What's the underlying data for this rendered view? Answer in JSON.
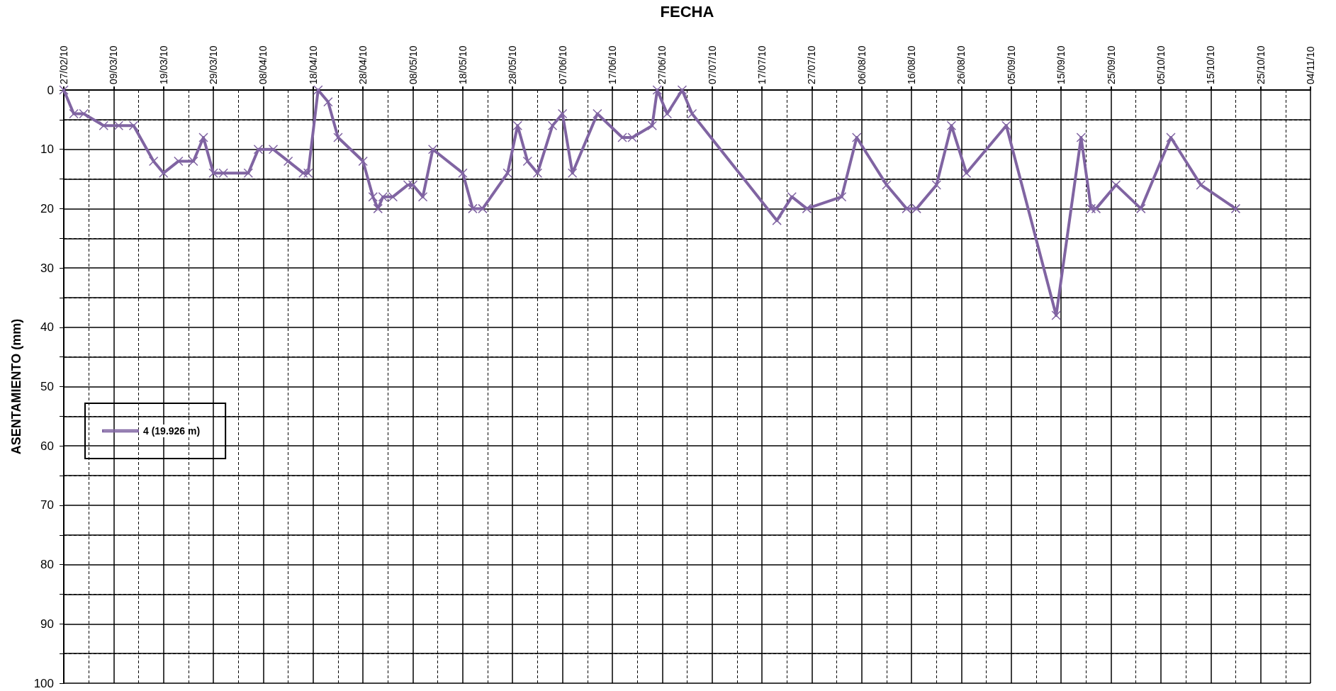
{
  "chart_data": {
    "type": "line",
    "xlabel": "FECHA",
    "ylabel": "ASENTAMIENTO (mm)",
    "x": [
      "--02-27",
      "--03-01",
      "--03-03",
      "--03-07",
      "--03-10",
      "--03-13",
      "--03-17",
      "--03-19",
      "--03-22",
      "--03-25",
      "--03-27",
      "--03-29",
      "--03-31",
      "--04-05",
      "--04-07",
      "--04-10",
      "--04-13",
      "--04-16",
      "--04-17",
      "--04-19",
      "--04-21",
      "--04-23",
      "--04-28",
      "--04-30",
      "--05-01",
      "--05-02",
      "--05-04",
      "--05-07",
      "--05-08",
      "--05-10",
      "--05-12",
      "--05-18",
      "--05-20",
      "--05-22",
      "--05-27",
      "--05-29",
      "--05-31",
      "--06-02",
      "--06-05",
      "--06-07",
      "--06-09",
      "--06-14",
      "--06-19",
      "--06-21",
      "--06-25",
      "--06-26",
      "--06-28",
      "--07-01",
      "--07-03",
      "--07-20",
      "--07-23",
      "--07-26",
      "--08-02",
      "--08-05",
      "--08-11",
      "--08-15",
      "--08-17",
      "--08-21",
      "--08-24",
      "--08-27",
      "--09-04",
      "--09-14",
      "--09-19",
      "--09-21",
      "--09-22",
      "--09-26",
      "--10-01",
      "--10-07",
      "--10-13",
      "--10-20"
    ],
    "series": [
      {
        "name": "4 (19.926 m)",
        "color": "#8064a2",
        "values": [
          0,
          4,
          4,
          6,
          6,
          6,
          12,
          14,
          12,
          12,
          8,
          14,
          14,
          14,
          10,
          10,
          12,
          14,
          14,
          0,
          2,
          8,
          12,
          18,
          20,
          18,
          18,
          16,
          16,
          18,
          10,
          14,
          20,
          20,
          14,
          6,
          12,
          14,
          6,
          4,
          14,
          4,
          8,
          8,
          6,
          0,
          4,
          0,
          4,
          22,
          18,
          20,
          18,
          8,
          16,
          20,
          20,
          16,
          6,
          14,
          6,
          38,
          8,
          20,
          20,
          16,
          20,
          8,
          16,
          20
        ]
      }
    ],
    "xlim": [
      "--02-27",
      "--11-04"
    ],
    "xticks": [
      {
        "value": "--02-27",
        "label": "27/02/10"
      },
      {
        "value": "--03-04",
        "label": null
      },
      {
        "value": "--03-09",
        "label": "09/03/10"
      },
      {
        "value": "--03-14",
        "label": null
      },
      {
        "value": "--03-19",
        "label": "19/03/10"
      },
      {
        "value": "--03-24",
        "label": null
      },
      {
        "value": "--03-29",
        "label": "29/03/10"
      },
      {
        "value": "--04-03",
        "label": null
      },
      {
        "value": "--04-08",
        "label": "08/04/10"
      },
      {
        "value": "--04-13",
        "label": null
      },
      {
        "value": "--04-18",
        "label": "18/04/10"
      },
      {
        "value": "--04-23",
        "label": null
      },
      {
        "value": "--04-28",
        "label": "28/04/10"
      },
      {
        "value": "--05-03",
        "label": null
      },
      {
        "value": "--05-08",
        "label": "08/05/10"
      },
      {
        "value": "--05-13",
        "label": null
      },
      {
        "value": "--05-18",
        "label": "18/05/10"
      },
      {
        "value": "--05-23",
        "label": null
      },
      {
        "value": "--05-28",
        "label": "28/05/10"
      },
      {
        "value": "--06-02",
        "label": null
      },
      {
        "value": "--06-07",
        "label": "07/06/10"
      },
      {
        "value": "--06-12",
        "label": null
      },
      {
        "value": "--06-17",
        "label": "17/06/10"
      },
      {
        "value": "--06-22",
        "label": null
      },
      {
        "value": "--06-27",
        "label": "27/06/10"
      },
      {
        "value": "--07-02",
        "label": null
      },
      {
        "value": "--07-07",
        "label": "07/07/10"
      },
      {
        "value": "--07-12",
        "label": null
      },
      {
        "value": "--07-17",
        "label": "17/07/10"
      },
      {
        "value": "--07-22",
        "label": null
      },
      {
        "value": "--07-27",
        "label": "27/07/10"
      },
      {
        "value": "--08-01",
        "label": null
      },
      {
        "value": "--08-06",
        "label": "06/08/10"
      },
      {
        "value": "--08-11",
        "label": null
      },
      {
        "value": "--08-16",
        "label": "16/08/10"
      },
      {
        "value": "--08-21",
        "label": null
      },
      {
        "value": "--08-26",
        "label": "26/08/10"
      },
      {
        "value": "--08-31",
        "label": null
      },
      {
        "value": "--09-05",
        "label": "05/09/10"
      },
      {
        "value": "--09-10",
        "label": null
      },
      {
        "value": "--09-15",
        "label": "15/09/10"
      },
      {
        "value": "--09-20",
        "label": null
      },
      {
        "value": "--09-25",
        "label": "25/09/10"
      },
      {
        "value": "--09-30",
        "label": null
      },
      {
        "value": "--10-05",
        "label": "05/10/10"
      },
      {
        "value": "--10-10",
        "label": null
      },
      {
        "value": "--10-15",
        "label": "15/10/10"
      },
      {
        "value": "--10-20",
        "label": null
      },
      {
        "value": "--10-25",
        "label": "25/10/10"
      },
      {
        "value": "--10-30",
        "label": null
      },
      {
        "value": "--11-04",
        "label": "04/11/10"
      }
    ],
    "ylim": [
      100,
      0
    ],
    "yticks": [
      0,
      {
        "value": 5,
        "label": null
      },
      10,
      {
        "value": 15,
        "label": null
      },
      20,
      {
        "value": 25,
        "label": null
      },
      30,
      {
        "value": 35,
        "label": null
      },
      40,
      {
        "value": 45,
        "label": null
      },
      50,
      {
        "value": 55,
        "label": null
      },
      60,
      {
        "value": 65,
        "label": null
      },
      70,
      {
        "value": 75,
        "label": null
      },
      80,
      {
        "value": 85,
        "label": null
      },
      90,
      {
        "value": 95,
        "label": null
      },
      100
    ],
    "grid": true,
    "legend": "left",
    "marker": "cross",
    "line_style": "solid"
  }
}
